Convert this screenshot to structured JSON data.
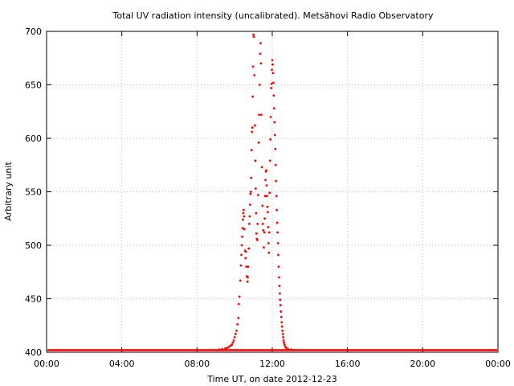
{
  "chart_data": {
    "type": "scatter",
    "title": "Total UV radiation intensity (uncalibrated). Metsähovi Radio Observatory",
    "xlabel": "Time UT, on date 2012-12-23",
    "ylabel": "Arbitrary unit",
    "xlim": [
      0,
      24
    ],
    "ylim": [
      400,
      700
    ],
    "x_ticks": [
      "00:00",
      "04:00",
      "08:00",
      "12:00",
      "16:00",
      "20:00",
      "00:00"
    ],
    "y_ticks": [
      "400",
      "450",
      "500",
      "550",
      "600",
      "650",
      "700"
    ],
    "grid": true,
    "point_color": "#ff0000",
    "baseline_value": 402,
    "points": [
      [
        9.0,
        402
      ],
      [
        9.2,
        402.5
      ],
      [
        9.35,
        403
      ],
      [
        9.5,
        403.5
      ],
      [
        9.6,
        404
      ],
      [
        9.7,
        405
      ],
      [
        9.78,
        406
      ],
      [
        9.85,
        407
      ],
      [
        9.9,
        409
      ],
      [
        9.95,
        411
      ],
      [
        10.0,
        414
      ],
      [
        10.05,
        417
      ],
      [
        10.1,
        420
      ],
      [
        10.15,
        426
      ],
      [
        10.2,
        432
      ],
      [
        10.22,
        445
      ],
      [
        10.25,
        452
      ],
      [
        10.3,
        467
      ],
      [
        10.33,
        481
      ],
      [
        10.36,
        491
      ],
      [
        10.38,
        500
      ],
      [
        10.4,
        508
      ],
      [
        10.42,
        516
      ],
      [
        10.44,
        524
      ],
      [
        10.46,
        530
      ],
      [
        10.48,
        533
      ],
      [
        10.5,
        527
      ],
      [
        10.52,
        515
      ],
      [
        10.55,
        495
      ],
      [
        10.58,
        488
      ],
      [
        10.6,
        494
      ],
      [
        10.62,
        480
      ],
      [
        10.65,
        471
      ],
      [
        10.68,
        466
      ],
      [
        10.7,
        470
      ],
      [
        10.72,
        480
      ],
      [
        10.75,
        497
      ],
      [
        10.78,
        520
      ],
      [
        10.8,
        527
      ],
      [
        10.82,
        538
      ],
      [
        10.84,
        548
      ],
      [
        10.86,
        550
      ],
      [
        10.88,
        563
      ],
      [
        10.9,
        589
      ],
      [
        10.92,
        606
      ],
      [
        10.94,
        610
      ],
      [
        10.96,
        639
      ],
      [
        10.98,
        667
      ],
      [
        11.0,
        697
      ],
      [
        11.02,
        695
      ],
      [
        11.05,
        659
      ],
      [
        11.08,
        612
      ],
      [
        11.1,
        579
      ],
      [
        11.12,
        553
      ],
      [
        11.14,
        530
      ],
      [
        11.16,
        511
      ],
      [
        11.18,
        506
      ],
      [
        11.2,
        505
      ],
      [
        11.22,
        520
      ],
      [
        11.25,
        547
      ],
      [
        11.28,
        596
      ],
      [
        11.3,
        622
      ],
      [
        11.33,
        650
      ],
      [
        11.36,
        679
      ],
      [
        11.38,
        689
      ],
      [
        11.4,
        670
      ],
      [
        11.42,
        622
      ],
      [
        11.45,
        573
      ],
      [
        11.48,
        537
      ],
      [
        11.5,
        520
      ],
      [
        11.52,
        514
      ],
      [
        11.55,
        498
      ],
      [
        11.58,
        512
      ],
      [
        11.6,
        525
      ],
      [
        11.62,
        546
      ],
      [
        11.64,
        561
      ],
      [
        11.66,
        569
      ],
      [
        11.68,
        570
      ],
      [
        11.7,
        556
      ],
      [
        11.72,
        546
      ],
      [
        11.74,
        536
      ],
      [
        11.76,
        531
      ],
      [
        11.78,
        517
      ],
      [
        11.8,
        502
      ],
      [
        11.82,
        493
      ],
      [
        11.84,
        512
      ],
      [
        11.86,
        549
      ],
      [
        11.88,
        579
      ],
      [
        11.9,
        599
      ],
      [
        11.92,
        620
      ],
      [
        11.94,
        647
      ],
      [
        11.96,
        651
      ],
      [
        11.98,
        664
      ],
      [
        12.0,
        673
      ],
      [
        12.02,
        669
      ],
      [
        12.04,
        661
      ],
      [
        12.06,
        652
      ],
      [
        12.08,
        640
      ],
      [
        12.1,
        628
      ],
      [
        12.12,
        615
      ],
      [
        12.14,
        603
      ],
      [
        12.16,
        590
      ],
      [
        12.18,
        575
      ],
      [
        12.2,
        560
      ],
      [
        12.22,
        546
      ],
      [
        12.24,
        533
      ],
      [
        12.26,
        521
      ],
      [
        12.28,
        512
      ],
      [
        12.3,
        502
      ],
      [
        12.32,
        491
      ],
      [
        12.34,
        480
      ],
      [
        12.36,
        470
      ],
      [
        12.38,
        462
      ],
      [
        12.4,
        455
      ],
      [
        12.42,
        449
      ],
      [
        12.44,
        444
      ],
      [
        12.46,
        438
      ],
      [
        12.48,
        433
      ],
      [
        12.5,
        428
      ],
      [
        12.52,
        424
      ],
      [
        12.54,
        420
      ],
      [
        12.56,
        417
      ],
      [
        12.58,
        414
      ],
      [
        12.6,
        411
      ],
      [
        12.62,
        409
      ],
      [
        12.65,
        407
      ],
      [
        12.7,
        405
      ],
      [
        12.75,
        404
      ],
      [
        12.85,
        403
      ],
      [
        13.0,
        402.5
      ]
    ]
  }
}
